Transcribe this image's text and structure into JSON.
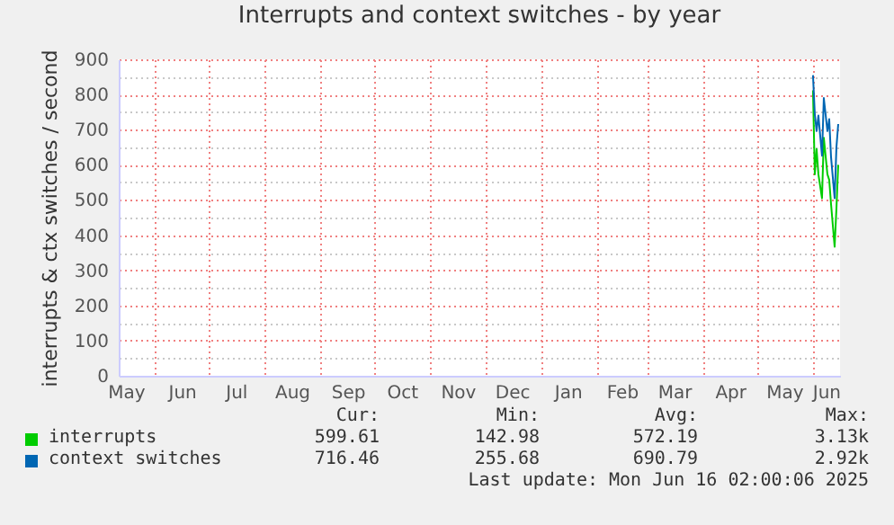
{
  "chart_data": {
    "type": "line",
    "title": "Interrupts and context switches - by year",
    "ylabel": "interrupts & ctx switches / second",
    "x": [
      "2025-06-01",
      "2025-06-02",
      "2025-06-03",
      "2025-06-04",
      "2025-06-06",
      "2025-06-07",
      "2025-06-09",
      "2025-06-10",
      "2025-06-11",
      "2025-06-13",
      "2025-06-14",
      "2025-06-15"
    ],
    "series": [
      {
        "name": "interrupts",
        "color": "#00cc00",
        "values": [
          812,
          573,
          645,
          573,
          505,
          677,
          573,
          557,
          489,
          367,
          476,
          600
        ]
      },
      {
        "name": "context switches",
        "color": "#0066b3",
        "values": [
          855,
          745,
          696,
          740,
          626,
          790,
          696,
          730,
          623,
          505,
          650,
          716
        ]
      }
    ],
    "xlim": [
      "2024-05-12",
      "2025-06-16"
    ],
    "xticks": [
      {
        "value": "2024-05-16",
        "label": "May"
      },
      {
        "value": "2024-06-01",
        "label": null
      },
      {
        "value": "2024-06-16",
        "label": "Jun"
      },
      {
        "value": "2024-07-01",
        "label": null
      },
      {
        "value": "2024-07-16",
        "label": "Jul"
      },
      {
        "value": "2024-08-01",
        "label": null
      },
      {
        "value": "2024-08-16",
        "label": "Aug"
      },
      {
        "value": "2024-09-01",
        "label": null
      },
      {
        "value": "2024-09-16",
        "label": "Sep"
      },
      {
        "value": "2024-10-01",
        "label": null
      },
      {
        "value": "2024-10-16",
        "label": "Oct"
      },
      {
        "value": "2024-11-01",
        "label": null
      },
      {
        "value": "2024-11-16",
        "label": "Nov"
      },
      {
        "value": "2024-12-01",
        "label": null
      },
      {
        "value": "2024-12-16",
        "label": "Dec"
      },
      {
        "value": "2025-01-01",
        "label": null
      },
      {
        "value": "2025-01-16",
        "label": "Jan"
      },
      {
        "value": "2025-02-01",
        "label": null
      },
      {
        "value": "2025-02-15",
        "label": "Feb"
      },
      {
        "value": "2025-03-01",
        "label": null
      },
      {
        "value": "2025-03-16",
        "label": "Mar"
      },
      {
        "value": "2025-04-01",
        "label": null
      },
      {
        "value": "2025-04-16",
        "label": "Apr"
      },
      {
        "value": "2025-05-01",
        "label": null
      },
      {
        "value": "2025-05-16",
        "label": "May"
      },
      {
        "value": "2025-06-01",
        "label": null
      },
      {
        "value": "2025-06-16",
        "label": "Jun"
      }
    ],
    "ylim": [
      0,
      900
    ],
    "yticks": [
      0,
      {
        "value": 50,
        "label": null
      },
      100,
      {
        "value": 150,
        "label": null
      },
      200,
      {
        "value": 250,
        "label": null
      },
      300,
      {
        "value": 350,
        "label": null
      },
      400,
      {
        "value": 450,
        "label": null
      },
      500,
      {
        "value": 550,
        "label": null
      },
      600,
      {
        "value": 650,
        "label": null
      },
      700,
      {
        "value": 750,
        "label": null
      },
      800,
      {
        "value": 850,
        "label": null
      },
      900
    ],
    "grid": true,
    "legend": "bottom",
    "line_style": "solid",
    "annotations": [
      "Cur:",
      "Min:",
      "Avg:",
      "Max:",
      "599.61",
      "142.98",
      "572.19",
      "3.13k",
      "716.46",
      "255.68",
      "690.79",
      "2.92k",
      "Last update: Mon Jun 16 02:00:06 2025"
    ]
  }
}
